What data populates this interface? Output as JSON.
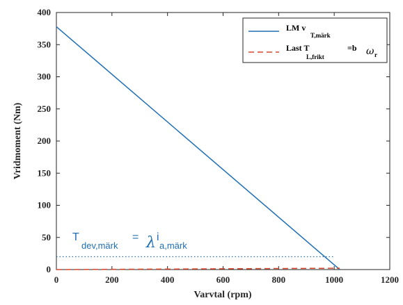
{
  "chart_data": {
    "type": "line",
    "xlabel": "Varvtal (rpm)",
    "ylabel": "Vridmoment (Nm)",
    "xlim": [
      0,
      1200
    ],
    "ylim": [
      0,
      400
    ],
    "xticks": [
      0,
      200,
      400,
      600,
      800,
      1000,
      1200
    ],
    "yticks": [
      0,
      50,
      100,
      150,
      200,
      250,
      300,
      350,
      400
    ],
    "grid": false,
    "legend_position": "top-right",
    "colors": {
      "lm": "#1f6fb4",
      "load": "#d9452b",
      "reference": "#1f6fb4"
    },
    "series": [
      {
        "name": "LM v",
        "name_sub": "T,märk",
        "style": "solid",
        "color_key": "lm",
        "x": [
          0,
          1020
        ],
        "y": [
          378,
          0
        ]
      },
      {
        "name": "Last T",
        "name_sub": "L,frikt",
        "name_suffix": "=b",
        "name_symbol": "ω",
        "name_symbol_sub": "r",
        "style": "dashed",
        "color_key": "load",
        "x": [
          0,
          1020
        ],
        "y": [
          0,
          2
        ]
      },
      {
        "name": "",
        "style": "dotted",
        "color_key": "reference",
        "x": [
          0,
          1000
        ],
        "y": [
          20,
          20
        ]
      }
    ],
    "annotation": {
      "t_symbol": "T",
      "t_sub": "dev,märk",
      "equals": "=",
      "lambda_symbol": "λ",
      "i_symbol": "i",
      "i_sub": "a,märk"
    }
  }
}
